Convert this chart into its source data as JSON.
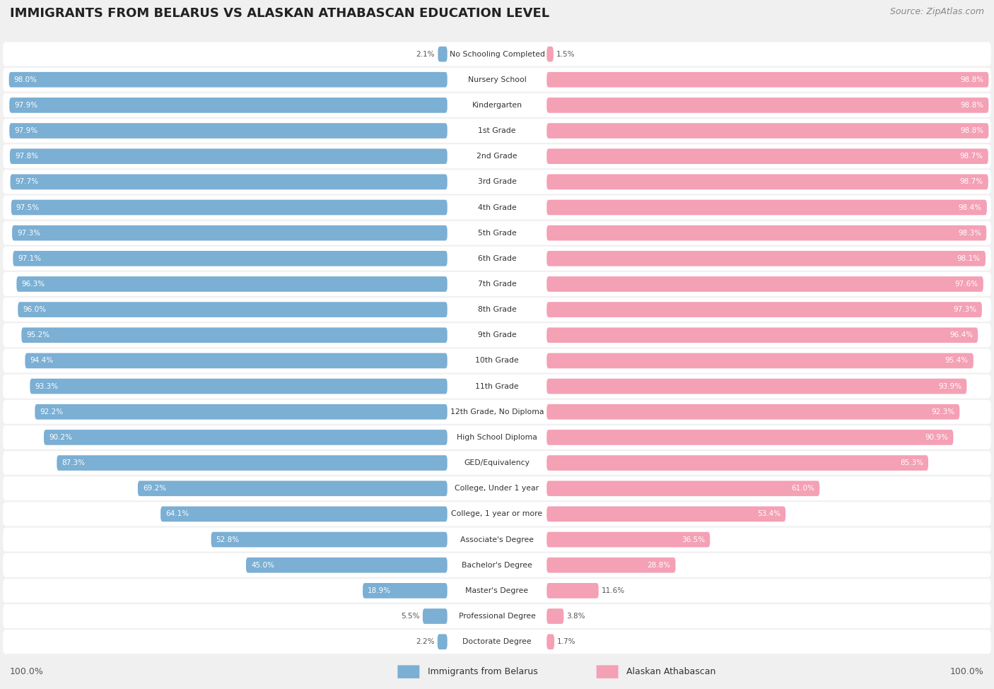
{
  "title": "IMMIGRANTS FROM BELARUS VS ALASKAN ATHABASCAN EDUCATION LEVEL",
  "source": "Source: ZipAtlas.com",
  "categories": [
    "No Schooling Completed",
    "Nursery School",
    "Kindergarten",
    "1st Grade",
    "2nd Grade",
    "3rd Grade",
    "4th Grade",
    "5th Grade",
    "6th Grade",
    "7th Grade",
    "8th Grade",
    "9th Grade",
    "10th Grade",
    "11th Grade",
    "12th Grade, No Diploma",
    "High School Diploma",
    "GED/Equivalency",
    "College, Under 1 year",
    "College, 1 year or more",
    "Associate's Degree",
    "Bachelor's Degree",
    "Master's Degree",
    "Professional Degree",
    "Doctorate Degree"
  ],
  "belarus_values": [
    2.1,
    98.0,
    97.9,
    97.9,
    97.8,
    97.7,
    97.5,
    97.3,
    97.1,
    96.3,
    96.0,
    95.2,
    94.4,
    93.3,
    92.2,
    90.2,
    87.3,
    69.2,
    64.1,
    52.8,
    45.0,
    18.9,
    5.5,
    2.2
  ],
  "athabascan_values": [
    1.5,
    98.8,
    98.8,
    98.8,
    98.7,
    98.7,
    98.4,
    98.3,
    98.1,
    97.6,
    97.3,
    96.4,
    95.4,
    93.9,
    92.3,
    90.9,
    85.3,
    61.0,
    53.4,
    36.5,
    28.8,
    11.6,
    3.8,
    1.7
  ],
  "belarus_color": "#7BAFD4",
  "athabascan_color": "#F4A0B5",
  "background_color": "#f0f0f0",
  "row_bg_color": "#ffffff",
  "text_color": "#333333",
  "value_color_inside": "#ffffff",
  "value_color_outside": "#555555",
  "legend_label_belarus": "Immigrants from Belarus",
  "legend_label_athabascan": "Alaskan Athabascan",
  "fig_width": 14.06,
  "fig_height": 9.75,
  "dpi": 100
}
